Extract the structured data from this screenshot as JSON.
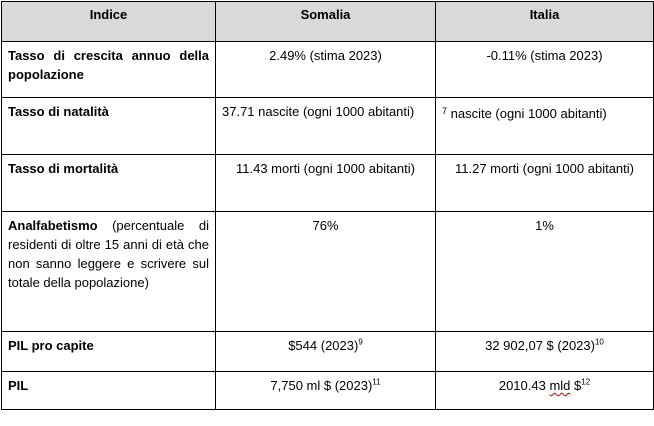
{
  "headers": [
    "Indice",
    "Somalia",
    "Italia"
  ],
  "rows": [
    {
      "label_bold": "Tasso di crescita annuo della popolazione",
      "label_rest": "",
      "somalia": "2.49% (stima 2023)",
      "italia": "-0.11% (stima 2023)"
    },
    {
      "label_bold": "Tasso di natalità",
      "label_rest": "",
      "somalia": "37.71 nascite (ogni 1000 abitanti)",
      "italia_sup": "7",
      "italia": " nascite (ogni 1000 abitanti)"
    },
    {
      "label_bold": "Tasso di mortalità",
      "label_rest": "",
      "somalia": "11.43 morti (ogni 1000 abitanti)",
      "italia": "11.27 morti (ogni 1000 abitanti)"
    },
    {
      "label_bold": "Analfabetismo",
      "label_rest": " (percentuale di residenti di oltre 15 anni di età che non sanno leggere e scrivere sul totale della popolazione)",
      "somalia": "76%",
      "italia": "1%"
    },
    {
      "label_bold": "PIL pro capite",
      "label_rest": "",
      "somalia": "$544 (2023)",
      "somalia_sup": "9",
      "italia": "32 902,07 $ (2023)",
      "italia_sup": "10"
    },
    {
      "label_bold": "PIL",
      "label_rest": "",
      "somalia": "7,750 ml $ (2023)",
      "somalia_sup": "11",
      "italia_pre": "2010.43 ",
      "italia_mld": "mld",
      "italia_post": " $",
      "italia_sup": "12"
    }
  ]
}
